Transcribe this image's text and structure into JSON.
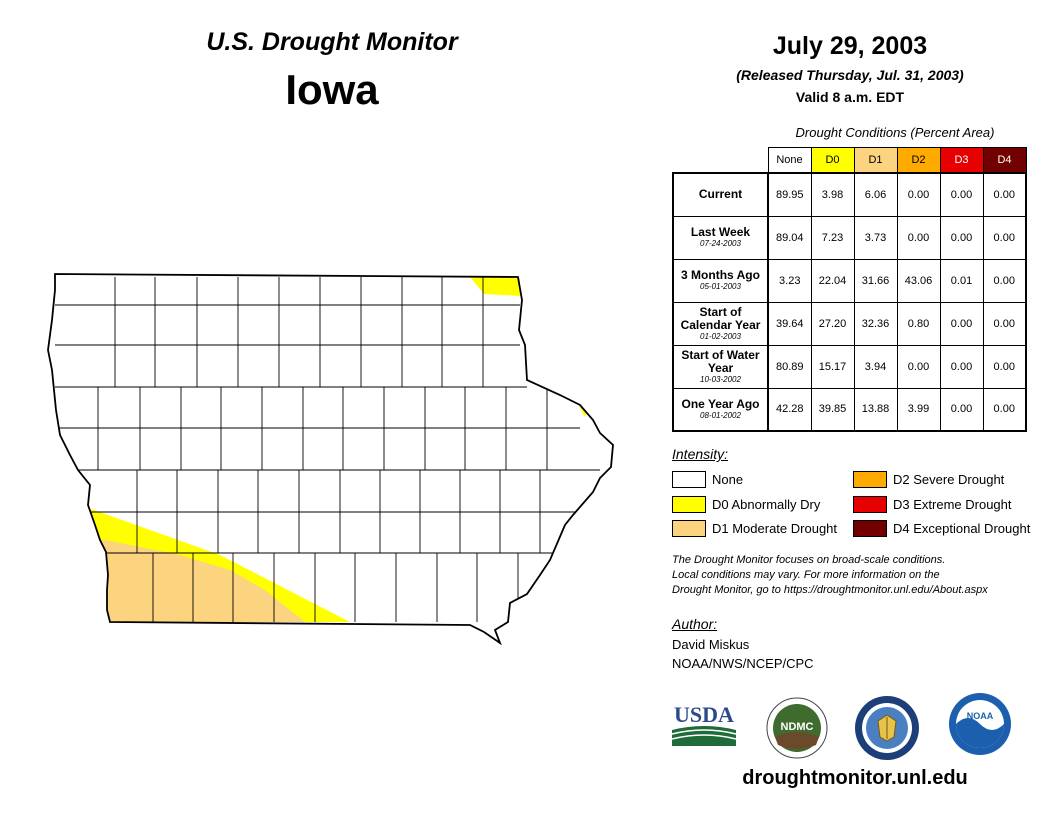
{
  "header": {
    "product_title": "U.S. Drought Monitor",
    "state": "Iowa",
    "map_date": "July 29, 2003",
    "release_line": "(Released Thursday, Jul. 31, 2003)",
    "valid_line": "Valid 8 a.m. EDT"
  },
  "table": {
    "caption": "Drought Conditions (Percent Area)",
    "columns": [
      "None",
      "D0",
      "D1",
      "D2",
      "D3",
      "D4"
    ],
    "rows": [
      {
        "label": "Current",
        "date": "",
        "values": [
          "89.95",
          "3.98",
          "6.06",
          "0.00",
          "0.00",
          "0.00"
        ]
      },
      {
        "label": "Last Week",
        "date": "07-24-2003",
        "values": [
          "89.04",
          "7.23",
          "3.73",
          "0.00",
          "0.00",
          "0.00"
        ]
      },
      {
        "label": "3 Months Ago",
        "date": "05-01-2003",
        "values": [
          "3.23",
          "22.04",
          "31.66",
          "43.06",
          "0.01",
          "0.00"
        ]
      },
      {
        "label": "Start of Calendar Year",
        "date": "01-02-2003",
        "values": [
          "39.64",
          "27.20",
          "32.36",
          "0.80",
          "0.00",
          "0.00"
        ]
      },
      {
        "label": "Start of Water Year",
        "date": "10-03-2002",
        "values": [
          "80.89",
          "15.17",
          "3.94",
          "0.00",
          "0.00",
          "0.00"
        ]
      },
      {
        "label": "One Year Ago",
        "date": "08-01-2002",
        "values": [
          "42.28",
          "39.85",
          "13.88",
          "3.99",
          "0.00",
          "0.00"
        ]
      }
    ]
  },
  "legend": {
    "heading": "Intensity:",
    "items": [
      {
        "label": "None",
        "color": "#ffffff"
      },
      {
        "label": "D0 Abnormally Dry",
        "color": "#ffff00"
      },
      {
        "label": "D1 Moderate Drought",
        "color": "#fcd37f"
      },
      {
        "label": "D2 Severe Drought",
        "color": "#ffaa00"
      },
      {
        "label": "D3 Extreme Drought",
        "color": "#e60000"
      },
      {
        "label": "D4 Exceptional Drought",
        "color": "#730000"
      }
    ]
  },
  "note": {
    "line1": "The Drought Monitor focuses on broad-scale conditions.",
    "line2": "Local conditions may vary. For more information on the",
    "line3": "Drought Monitor, go to https://droughtmonitor.unl.edu/About.aspx"
  },
  "author": {
    "heading": "Author:",
    "name": "David Miskus",
    "org": "NOAA/NWS/NCEP/CPC"
  },
  "logos": {
    "usda": "USDA",
    "ndmc": "NDMC",
    "noaa": "NOAA"
  },
  "footer": {
    "url": "droughtmonitor.unl.edu"
  }
}
